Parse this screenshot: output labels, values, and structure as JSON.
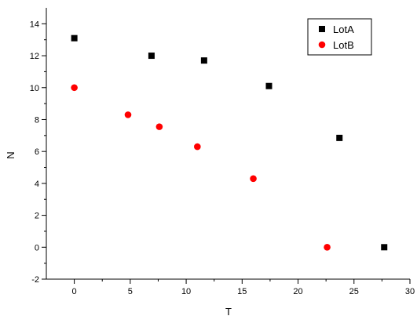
{
  "chart_data": {
    "type": "scatter",
    "title": "",
    "xlabel": "T",
    "ylabel": "N",
    "xlim": [
      -2.5,
      30
    ],
    "ylim": [
      -2,
      15
    ],
    "x_ticks": [
      0,
      5,
      10,
      15,
      20,
      25,
      30
    ],
    "y_ticks": [
      -2,
      0,
      2,
      4,
      6,
      8,
      10,
      12,
      14
    ],
    "grid": false,
    "legend_position": "top-right",
    "series": [
      {
        "name": "LotA",
        "marker": "square",
        "color": "#000000",
        "points": [
          {
            "x": 0,
            "y": 13.1
          },
          {
            "x": 6.9,
            "y": 12.0
          },
          {
            "x": 11.6,
            "y": 11.7
          },
          {
            "x": 17.4,
            "y": 10.1
          },
          {
            "x": 23.7,
            "y": 6.85
          },
          {
            "x": 27.7,
            "y": 0
          }
        ]
      },
      {
        "name": "LotB",
        "marker": "circle",
        "color": "#ff0000",
        "points": [
          {
            "x": 0,
            "y": 10.0
          },
          {
            "x": 4.8,
            "y": 8.3
          },
          {
            "x": 7.6,
            "y": 7.55
          },
          {
            "x": 11.0,
            "y": 6.3
          },
          {
            "x": 16.0,
            "y": 4.3
          },
          {
            "x": 22.6,
            "y": 0
          }
        ]
      }
    ]
  }
}
